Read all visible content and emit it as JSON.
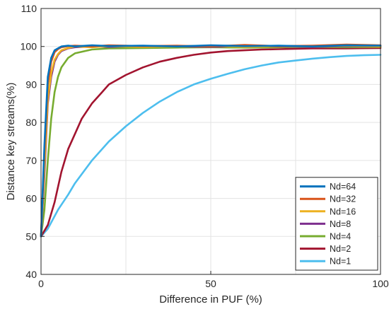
{
  "chart_data": {
    "type": "line",
    "title": "",
    "xlabel": "Difference in PUF (%)",
    "ylabel": "Distance key streams(%)",
    "xlim": [
      0,
      100
    ],
    "ylim": [
      40,
      110
    ],
    "xticks": [
      0,
      50,
      100
    ],
    "yticks": [
      40,
      50,
      60,
      70,
      80,
      90,
      100,
      110
    ],
    "grid": true,
    "legend_position": "lower-right",
    "series": [
      {
        "name": "Nd=64",
        "color": "#0072BD",
        "x": [
          0,
          1,
          2,
          3,
          4,
          5,
          6,
          8,
          10,
          15,
          20,
          30,
          40,
          50,
          60,
          70,
          80,
          90,
          100
        ],
        "y": [
          50,
          74,
          92,
          97,
          99,
          99.5,
          100,
          100.2,
          100,
          100.3,
          100.1,
          100.2,
          100,
          100.3,
          100.1,
          100.2,
          100,
          100.3,
          100.2
        ]
      },
      {
        "name": "Nd=32",
        "color": "#D95319",
        "x": [
          0,
          1,
          2,
          3,
          4,
          5,
          6,
          8,
          10,
          15,
          20,
          30,
          40,
          50,
          60,
          70,
          80,
          90,
          100
        ],
        "y": [
          50,
          72,
          90,
          96,
          98.5,
          99.3,
          99.8,
          100.1,
          100.2,
          100,
          100.3,
          100.1,
          100.2,
          100,
          100.4,
          100.1,
          100.2,
          100.5,
          100.3
        ]
      },
      {
        "name": "Nd=16",
        "color": "#EDB120",
        "x": [
          0,
          1,
          2,
          3,
          4,
          5,
          6,
          8,
          10,
          15,
          20,
          30,
          40,
          50,
          60,
          70,
          80,
          90,
          100
        ],
        "y": [
          50,
          68,
          86,
          93,
          96.5,
          98,
          99,
          99.6,
          100,
          99.8,
          100.1,
          99.9,
          100,
          100.2,
          99.9,
          100.1,
          100,
          100.2,
          100
        ]
      },
      {
        "name": "Nd=8",
        "color": "#7E2F8E",
        "x": [
          0,
          1,
          2,
          3,
          4,
          5,
          6,
          8,
          10,
          15,
          20,
          30,
          40,
          50,
          60,
          70,
          80,
          90,
          100
        ],
        "y": [
          50,
          66,
          85,
          92,
          96,
          97.8,
          98.8,
          99.5,
          99.8,
          100,
          99.9,
          100.1,
          100,
          99.9,
          100.1,
          100,
          99.9,
          100.1,
          100
        ]
      },
      {
        "name": "Nd=4",
        "color": "#77AC30",
        "x": [
          0,
          1,
          2,
          3,
          4,
          5,
          6,
          8,
          10,
          15,
          20,
          30,
          40,
          50,
          60,
          70,
          80,
          90,
          100
        ],
        "y": [
          50,
          57,
          70,
          81,
          88,
          92,
          94.5,
          97,
          98.2,
          99.2,
          99.5,
          99.6,
          99.7,
          99.8,
          99.7,
          99.8,
          99.9,
          99.8,
          99.9
        ]
      },
      {
        "name": "Nd=2",
        "color": "#A2142F",
        "x": [
          0,
          2,
          4,
          6,
          8,
          10,
          12,
          15,
          18,
          20,
          25,
          30,
          35,
          40,
          45,
          50,
          55,
          60,
          65,
          70,
          75,
          80,
          90,
          100
        ],
        "y": [
          50,
          53,
          59,
          67,
          73,
          77,
          81,
          85,
          88,
          90,
          92.5,
          94.5,
          96,
          97,
          97.8,
          98.4,
          98.8,
          99,
          99.2,
          99.3,
          99.4,
          99.5,
          99.5,
          99.6
        ]
      },
      {
        "name": "Nd=1",
        "color": "#4DBEEE",
        "x": [
          0,
          2,
          5,
          8,
          10,
          15,
          20,
          25,
          30,
          35,
          40,
          45,
          50,
          55,
          60,
          65,
          70,
          75,
          80,
          85,
          90,
          95,
          100
        ],
        "y": [
          50,
          52,
          57,
          61,
          64,
          70,
          75,
          79,
          82.5,
          85.5,
          88,
          90,
          91.5,
          92.8,
          94,
          95,
          95.8,
          96.3,
          96.8,
          97.2,
          97.5,
          97.7,
          97.8
        ]
      }
    ]
  }
}
